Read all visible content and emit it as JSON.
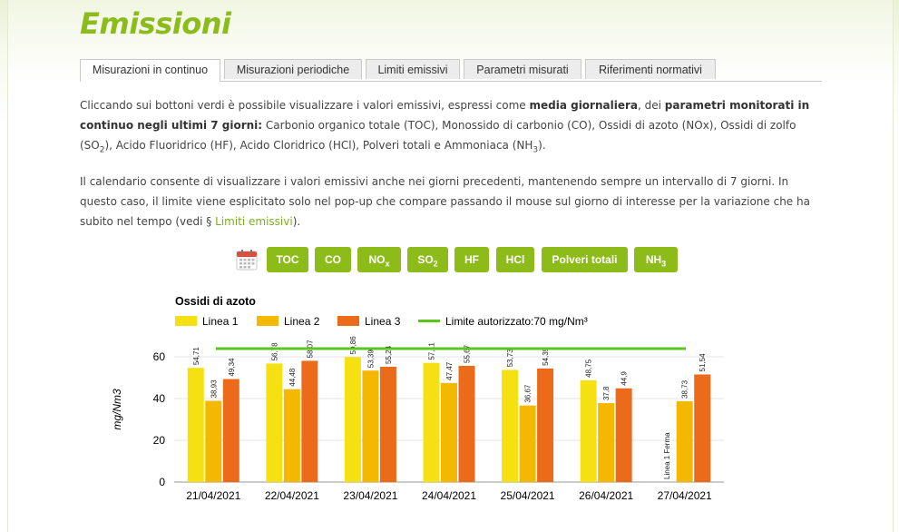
{
  "page": {
    "title": "Emissioni"
  },
  "tabs": [
    {
      "label": "Misurazioni in continuo",
      "active": true
    },
    {
      "label": "Misurazioni periodiche",
      "active": false
    },
    {
      "label": "Limiti emissivi",
      "active": false
    },
    {
      "label": "Parametri misurati",
      "active": false
    },
    {
      "label": "Riferimenti normativi",
      "active": false
    }
  ],
  "intro": {
    "p1_a": "Cliccando sui bottoni verdi è possibile visualizzare i valori emissivi, espressi come ",
    "p1_b1": "media giornaliera",
    "p1_c": ", dei ",
    "p1_b2": "parametri monitorati in continuo negli ultimi 7 giorni:",
    "p1_d": " Carbonio organico totale (TOC), Monossido di carbonio (CO), Ossidi di azoto (NOx), Ossidi di zolfo (SO",
    "p1_sub1": "2",
    "p1_e": "), Acido Fluoridrico (HF), Acido Cloridrico (HCl), Polveri totali e Ammoniaca (NH",
    "p1_sub2": "3",
    "p1_f": ").",
    "p2_a": "Il calendario consente di visualizzare i valori emissivi anche nei giorni precedenti, mantenendo sempre un intervallo di 7 giorni. In questo caso, il limite viene esplicitato solo nel pop-up che compare passando il mouse sul giorno di interesse per la variazione che ha subito nel tempo (vedi § ",
    "p2_link": "Limiti emissivi",
    "p2_b": ")."
  },
  "buttons": {
    "calendar_icon": "calendar-icon",
    "toc": "TOC",
    "co": "CO",
    "nox_main": "NO",
    "nox_sub": "x",
    "so2_main": "SO",
    "so2_sub": "2",
    "hf": "HF",
    "hcl": "HCl",
    "polveri": "Polveri totali",
    "nh3_main": "NH",
    "nh3_sub": "3"
  },
  "colors": {
    "accent": "#8dbb1a",
    "linea1": "#f5e112",
    "linea2": "#f5b800",
    "linea3": "#ec6b1a",
    "limit": "#5cc51a"
  },
  "chart_data": {
    "type": "bar",
    "title": "Ossidi di azoto",
    "ylabel": "mg/Nm3",
    "ylim": [
      0,
      70
    ],
    "yticks": [
      0,
      20,
      40,
      60
    ],
    "grid": true,
    "legend_position": "top-left",
    "categories": [
      "21/04/2021",
      "22/04/2021",
      "23/04/2021",
      "24/04/2021",
      "25/04/2021",
      "26/04/2021",
      "27/04/2021"
    ],
    "series": [
      {
        "name": "Linea 1",
        "color": "#f5e112",
        "values": [
          54.71,
          56.78,
          59.86,
          57.11,
          53.73,
          48.75,
          null
        ],
        "labels": [
          "54,71",
          "56,78",
          "59,86",
          "57,11",
          "53,73",
          "48,75",
          "Linea 1 Ferma"
        ]
      },
      {
        "name": "Linea 2",
        "color": "#f5b800",
        "values": [
          38.93,
          44.48,
          53.39,
          47.47,
          36.67,
          37.8,
          38.73
        ],
        "labels": [
          "38,93",
          "44,48",
          "53,39",
          "47,47",
          "36,67",
          "37,8",
          "38,73"
        ]
      },
      {
        "name": "Linea 3",
        "color": "#ec6b1a",
        "values": [
          49.34,
          58.07,
          55.24,
          55.67,
          54.39,
          44.9,
          51.54
        ],
        "labels": [
          "49,34",
          "58,07",
          "55,24",
          "55,67",
          "54,39",
          "44,9",
          "51,54"
        ]
      }
    ],
    "limit": {
      "name": "Limite autorizzato:70 mg/Nm³",
      "value": 70,
      "color": "#5cc51a"
    }
  }
}
